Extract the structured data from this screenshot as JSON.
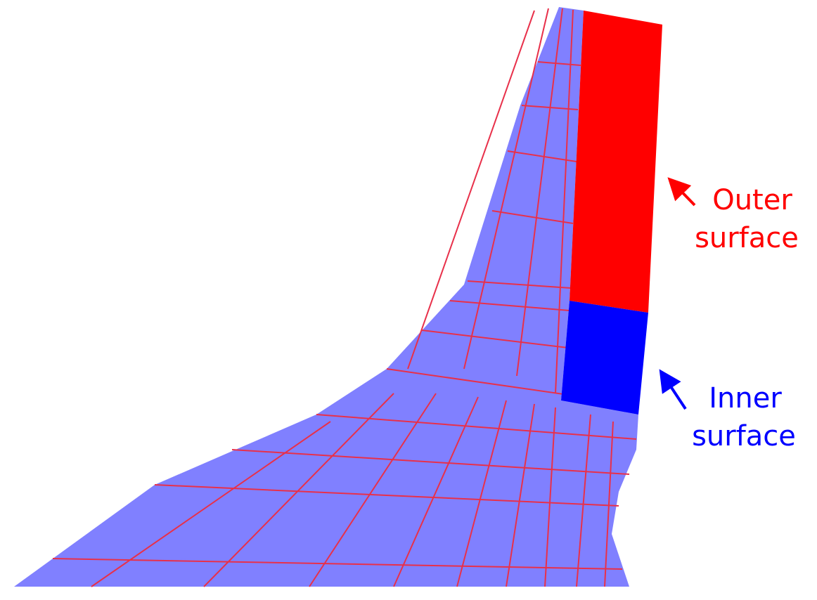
{
  "annotations": {
    "outer": [
      "Outer",
      "surface"
    ],
    "inner": [
      "Inner",
      "surface"
    ]
  }
}
